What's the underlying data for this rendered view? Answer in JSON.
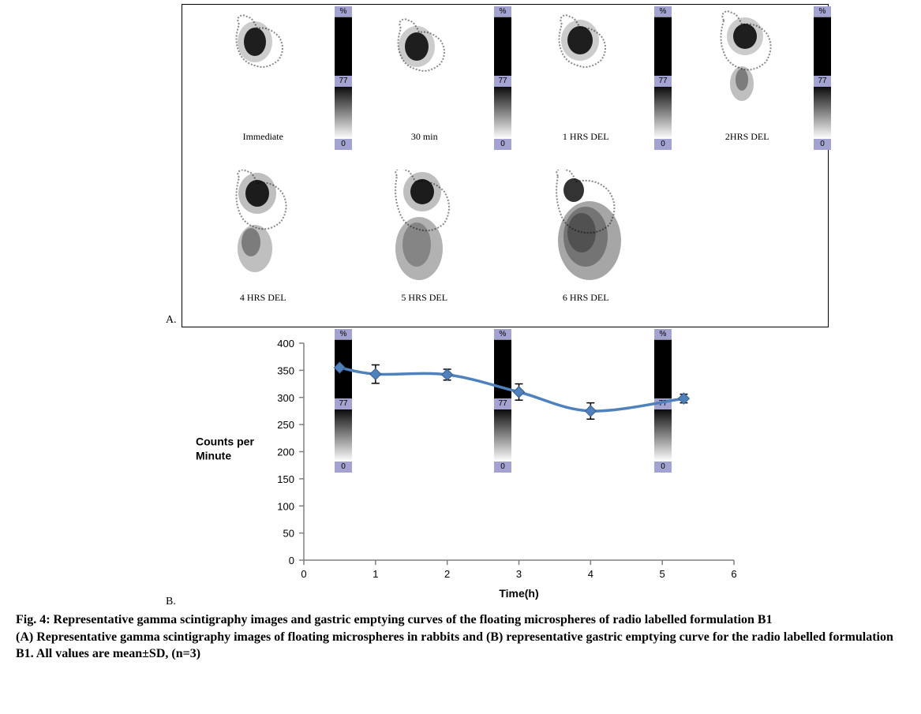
{
  "panelA": {
    "images": [
      {
        "label": "Immediate"
      },
      {
        "label": "30 min"
      },
      {
        "label": "1 HRS DEL"
      },
      {
        "label": "2HRS DEL"
      },
      {
        "label": "4 HRS DEL"
      },
      {
        "label": "5 HRS DEL"
      },
      {
        "label": "6 HRS DEL"
      }
    ],
    "colorbar": {
      "top_label": "%",
      "mid_label": "77",
      "bot_label": "0",
      "bg_color": "#a3a3d1"
    },
    "label": "A."
  },
  "chart": {
    "type": "line",
    "title": "",
    "ylabel": "Counts per\nMinute",
    "xlabel": "Time(h)",
    "xlim": [
      0,
      6
    ],
    "ylim": [
      0,
      400
    ],
    "xticks": [
      0,
      1,
      2,
      3,
      4,
      5,
      6
    ],
    "yticks": [
      0,
      50,
      100,
      150,
      200,
      250,
      300,
      350,
      400
    ],
    "series": {
      "x": [
        0.5,
        1,
        2,
        3,
        4,
        5.3
      ],
      "y": [
        355,
        343,
        342,
        310,
        275,
        298
      ],
      "err": [
        7,
        17,
        10,
        15,
        15,
        8
      ]
    },
    "line_color": "#4f81bd",
    "line_width": 3.5,
    "marker_fill": "#4f81bd",
    "marker_stroke": "#385d8a",
    "marker_size": 7,
    "err_color": "#000000",
    "axis_color": "#808080",
    "tick_color": "#808080",
    "text_color": "#000000",
    "bg_color": "#ffffff",
    "tick_fontsize": 13,
    "label_fontsize": 14,
    "ylabel_fontsize": 14
  },
  "panelB_label": "B.",
  "caption": {
    "line1": "Fig. 4: Representative gamma scintigraphy images and gastric emptying curves of the floating microspheres of radio labelled formulation B1",
    "line2": "(A) Representative gamma scintigraphy images of floating microspheres in rabbits and (B) representative gastric emptying curve for the radio labelled formulation B1. All values are mean±SD, (n=3)"
  }
}
